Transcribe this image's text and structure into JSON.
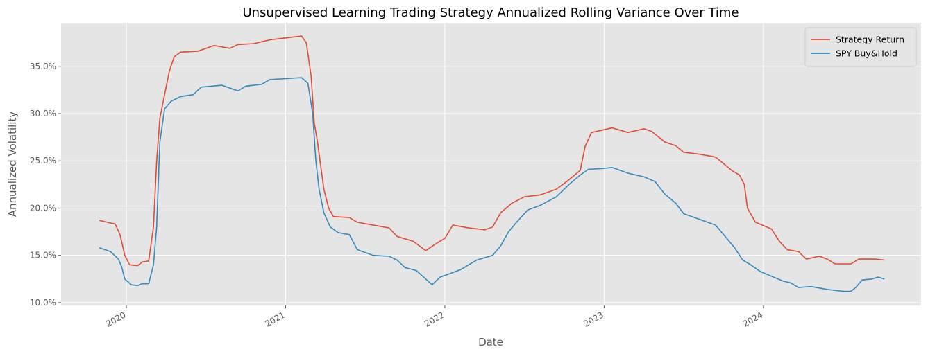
{
  "chart_data": {
    "type": "line",
    "title": "Unsupervised Learning Trading Strategy Annualized Rolling Variance Over Time",
    "x_label": "Date",
    "y_label": "Annualized Volatility",
    "xlim": [
      2019.59,
      2024.99
    ],
    "xticks": [
      2020,
      2021,
      2022,
      2023,
      2024
    ],
    "ylim": [
      9.7,
      39.6
    ],
    "yticks": [
      {
        "value": 10,
        "label": "10.0%"
      },
      {
        "value": 15,
        "label": "15.0%"
      },
      {
        "value": 20,
        "label": "20.0%"
      },
      {
        "value": 25,
        "label": "25.0%"
      },
      {
        "value": 30,
        "label": "30.0%"
      },
      {
        "value": 35,
        "label": "35.0%"
      }
    ],
    "grid": true,
    "legend": "upper right",
    "series": [
      {
        "name": "Strategy Return",
        "color": "#E24A33",
        "x": [
          2019.83,
          2019.88,
          2019.93,
          2019.96,
          2019.99,
          2020.02,
          2020.07,
          2020.1,
          2020.14,
          2020.17,
          2020.19,
          2020.21,
          2020.24,
          2020.27,
          2020.3,
          2020.34,
          2020.45,
          2020.55,
          2020.65,
          2020.7,
          2020.8,
          2020.9,
          2021.0,
          2021.1,
          2021.13,
          2021.16,
          2021.18,
          2021.2,
          2021.22,
          2021.24,
          2021.27,
          2021.3,
          2021.4,
          2021.45,
          2021.55,
          2021.65,
          2021.7,
          2021.8,
          2021.88,
          2021.95,
          2022.0,
          2022.05,
          2022.15,
          2022.25,
          2022.3,
          2022.35,
          2022.42,
          2022.5,
          2022.6,
          2022.7,
          2022.78,
          2022.85,
          2022.88,
          2022.92,
          2023.0,
          2023.05,
          2023.15,
          2023.25,
          2023.3,
          2023.38,
          2023.45,
          2023.5,
          2023.6,
          2023.7,
          2023.75,
          2023.8,
          2023.85,
          2023.88,
          2023.9,
          2023.95,
          2024.05,
          2024.1,
          2024.15,
          2024.22,
          2024.27,
          2024.35,
          2024.4,
          2024.45,
          2024.55,
          2024.6,
          2024.7,
          2024.76
        ],
        "values": [
          18.7,
          18.5,
          18.3,
          17.2,
          15.0,
          14.0,
          13.9,
          14.3,
          14.4,
          18,
          25,
          29.5,
          32,
          34.5,
          36,
          36.5,
          36.6,
          37.2,
          36.9,
          37.3,
          37.4,
          37.8,
          38.0,
          38.2,
          37.5,
          34,
          29,
          27,
          24.5,
          22,
          20,
          19.1,
          19.0,
          18.5,
          18.2,
          17.9,
          17.0,
          16.5,
          15.5,
          16.3,
          16.8,
          18.2,
          17.9,
          17.7,
          18.0,
          19.5,
          20.5,
          21.2,
          21.4,
          22.0,
          23.0,
          24.0,
          26.5,
          28.0,
          28.3,
          28.5,
          28.0,
          28.4,
          28.1,
          27.0,
          26.6,
          25.9,
          25.7,
          25.4,
          24.7,
          24.0,
          23.5,
          22.5,
          20,
          18.5,
          17.8,
          16.5,
          15.6,
          15.4,
          14.6,
          14.9,
          14.6,
          14.1,
          14.1,
          14.6,
          14.6,
          14.5
        ]
      },
      {
        "name": "SPY Buy&Hold",
        "color": "#348ABD",
        "x": [
          2019.83,
          2019.9,
          2019.95,
          2019.97,
          2019.99,
          2020.03,
          2020.07,
          2020.1,
          2020.14,
          2020.17,
          2020.19,
          2020.21,
          2020.24,
          2020.28,
          2020.34,
          2020.42,
          2020.47,
          2020.6,
          2020.7,
          2020.75,
          2020.85,
          2020.9,
          2021.0,
          2021.1,
          2021.14,
          2021.17,
          2021.19,
          2021.21,
          2021.24,
          2021.28,
          2021.33,
          2021.4,
          2021.45,
          2021.55,
          2021.65,
          2021.7,
          2021.75,
          2021.82,
          2021.88,
          2021.92,
          2021.97,
          2022.02,
          2022.1,
          2022.15,
          2022.2,
          2022.3,
          2022.35,
          2022.4,
          2022.45,
          2022.52,
          2022.6,
          2022.7,
          2022.78,
          2022.85,
          2022.9,
          2023.0,
          2023.05,
          2023.15,
          2023.25,
          2023.32,
          2023.38,
          2023.45,
          2023.5,
          2023.6,
          2023.7,
          2023.75,
          2023.82,
          2023.87,
          2023.92,
          2023.98,
          2024.05,
          2024.12,
          2024.17,
          2024.22,
          2024.3,
          2024.4,
          2024.5,
          2024.55,
          2024.58,
          2024.62,
          2024.68,
          2024.72,
          2024.76
        ],
        "values": [
          15.8,
          15.4,
          14.6,
          13.8,
          12.5,
          11.9,
          11.8,
          12.0,
          12.0,
          14,
          18,
          27,
          30.5,
          31.3,
          31.8,
          32.0,
          32.8,
          33.0,
          32.4,
          32.9,
          33.1,
          33.6,
          33.7,
          33.8,
          33.2,
          30,
          25,
          22,
          19.5,
          18.0,
          17.4,
          17.2,
          15.6,
          15.0,
          14.9,
          14.5,
          13.7,
          13.4,
          12.5,
          11.9,
          12.7,
          13.0,
          13.5,
          14.0,
          14.5,
          15.0,
          16.0,
          17.5,
          18.5,
          19.8,
          20.3,
          21.2,
          22.5,
          23.5,
          24.1,
          24.2,
          24.3,
          23.7,
          23.3,
          22.8,
          21.5,
          20.5,
          19.4,
          18.8,
          18.2,
          17.2,
          15.8,
          14.5,
          14.0,
          13.3,
          12.8,
          12.3,
          12.1,
          11.6,
          11.7,
          11.4,
          11.2,
          11.2,
          11.6,
          12.4,
          12.5,
          12.7,
          12.5
        ]
      }
    ]
  }
}
